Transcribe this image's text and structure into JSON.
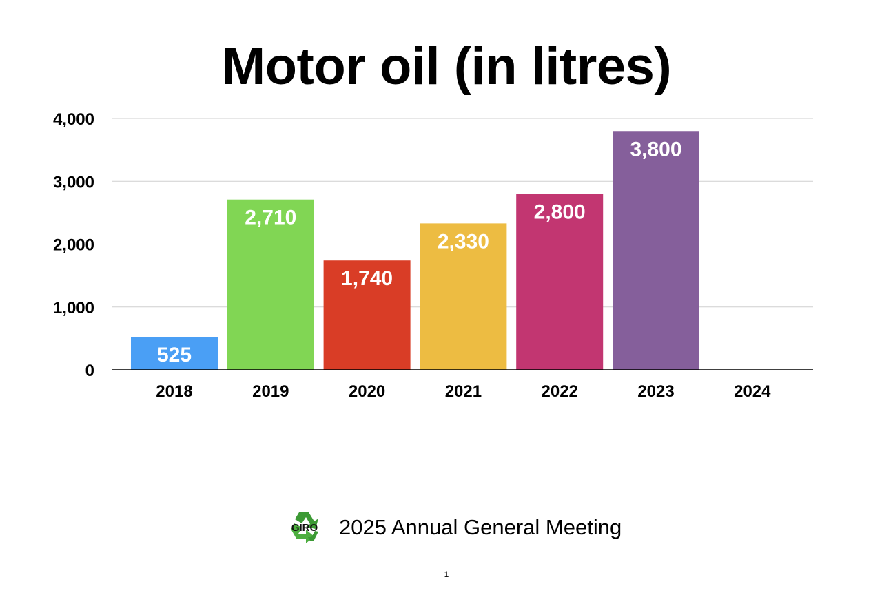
{
  "slide": {
    "footer_text": "2025 Annual General Meeting",
    "logo_text": "GIRO",
    "logo_icon": "recycle-icon",
    "page_number": "1"
  },
  "chart_data": {
    "type": "bar",
    "title": "Motor oil (in litres)",
    "xlabel": "",
    "ylabel": "",
    "categories": [
      "2018",
      "2019",
      "2020",
      "2021",
      "2022",
      "2023",
      "2024"
    ],
    "values": [
      525,
      2710,
      1740,
      2330,
      2800,
      3800,
      0
    ],
    "data_labels": [
      "525",
      "2,710",
      "1,740",
      "2,330",
      "2,800",
      "3,800",
      ""
    ],
    "colors": [
      "#4A9FF5",
      "#81D654",
      "#D93D26",
      "#EDBC42",
      "#C23671",
      "#855F9B",
      "#777777"
    ],
    "ylim": [
      0,
      4000
    ],
    "yticks": [
      0,
      1000,
      2000,
      3000,
      4000
    ],
    "ytick_labels": [
      "0",
      "1,000",
      "2,000",
      "3,000",
      "4,000"
    ],
    "grid": true,
    "legend": "none"
  }
}
